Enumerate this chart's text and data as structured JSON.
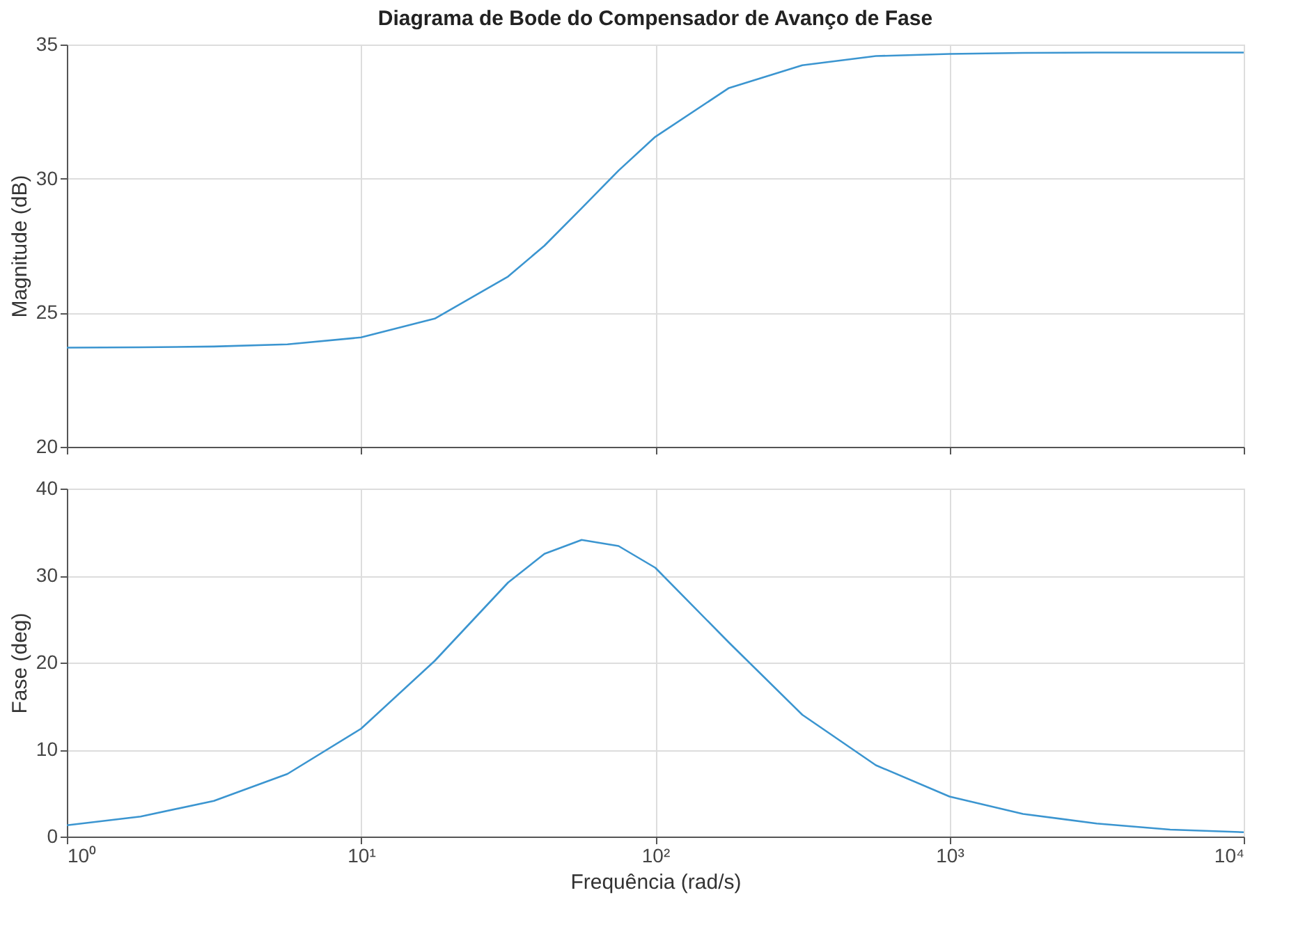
{
  "chart_data": [
    {
      "type": "line",
      "title": "Diagrama de Bode do Compensador de Avanço de Fase",
      "ylabel": "Magnitude (dB)",
      "log": "x",
      "grid": true,
      "tick_labels": "y",
      "x": [
        1,
        1.78,
        3.16,
        5.62,
        10,
        17.8,
        31.6,
        42,
        56.2,
        75,
        100,
        178,
        316,
        562,
        1000,
        1778,
        3162,
        5623,
        10000
      ],
      "series": [
        {
          "color": "#3b95d0",
          "values": [
            23.7,
            23.71,
            23.74,
            23.82,
            24.08,
            24.78,
            26.35,
            27.5,
            28.9,
            30.3,
            31.56,
            33.38,
            34.23,
            34.57,
            34.65,
            34.69,
            34.7,
            34.7,
            34.7
          ]
        }
      ],
      "xlim": [
        1,
        10000
      ],
      "xticks": [
        {
          "value": 1,
          "label": null
        },
        {
          "value": 10,
          "label": null
        },
        {
          "value": 100,
          "label": null
        },
        {
          "value": 1000,
          "label": null
        },
        {
          "value": 10000,
          "label": null
        }
      ],
      "ylim": [
        20,
        35
      ],
      "yticks": [
        20,
        25,
        30,
        35
      ]
    },
    {
      "type": "line",
      "xlabel": "Frequência  (rad/s)",
      "ylabel": "Fase (deg)",
      "log": "x",
      "grid": true,
      "x": [
        1,
        1.78,
        3.16,
        5.62,
        10,
        17.8,
        31.6,
        42,
        56.2,
        75,
        100,
        178,
        316,
        562,
        1000,
        1778,
        3162,
        5623,
        10000
      ],
      "series": [
        {
          "color": "#3b95d0",
          "values": [
            1.3,
            2.3,
            4.1,
            7.2,
            12.4,
            20.2,
            29.2,
            32.5,
            34.1,
            33.4,
            30.9,
            22.3,
            14.0,
            8.2,
            4.6,
            2.6,
            1.5,
            0.8,
            0.5
          ]
        }
      ],
      "xlim": [
        1,
        10000
      ],
      "xticks": [
        {
          "value": 1,
          "label": "10⁰"
        },
        {
          "value": 10,
          "label": "10¹"
        },
        {
          "value": 100,
          "label": "10²"
        },
        {
          "value": 1000,
          "label": "10³"
        },
        {
          "value": 10000,
          "label": "10⁴"
        }
      ],
      "ylim": [
        0,
        40
      ],
      "yticks": [
        0,
        10,
        20,
        30,
        40
      ]
    }
  ]
}
